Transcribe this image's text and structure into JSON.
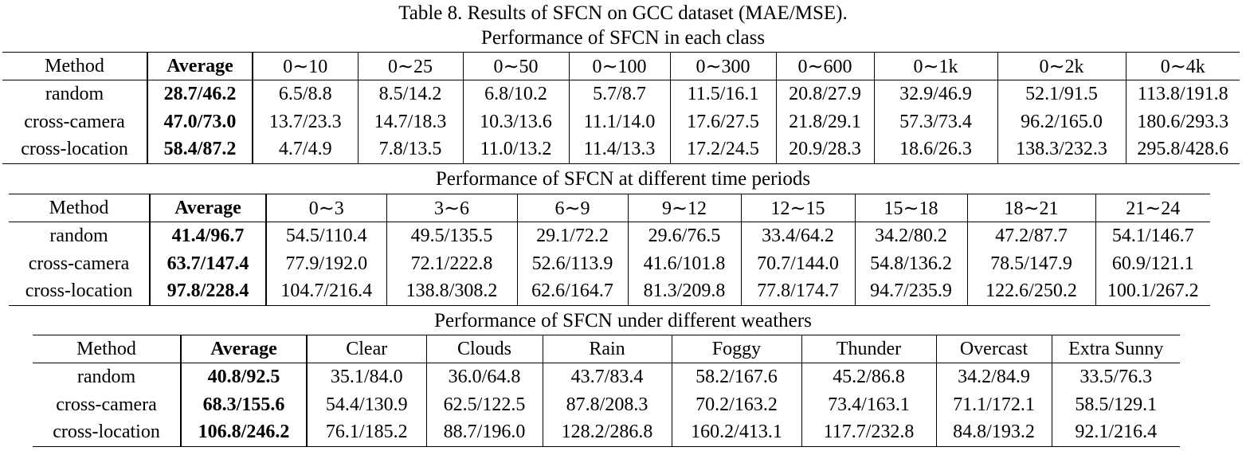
{
  "caption": "Table 8. Results of SFCN on GCC dataset (MAE/MSE).",
  "tables": [
    {
      "title": "Performance of SFCN in each class",
      "header": [
        "Method",
        "Average",
        "0∼10",
        "0∼25",
        "0∼50",
        "0∼100",
        "0∼300",
        "0∼600",
        "0∼1k",
        "0∼2k",
        "0∼4k"
      ],
      "rows": [
        [
          "random",
          "28.7/46.2",
          "6.5/8.8",
          "8.5/14.2",
          "6.8/10.2",
          "5.7/8.7",
          "11.5/16.1",
          "20.8/27.9",
          "32.9/46.9",
          "52.1/91.5",
          "113.8/191.8"
        ],
        [
          "cross-camera",
          "47.0/73.0",
          "13.7/23.3",
          "14.7/18.3",
          "10.3/13.6",
          "11.1/14.0",
          "17.6/27.5",
          "21.8/29.1",
          "57.3/73.4",
          "96.2/165.0",
          "180.6/293.3"
        ],
        [
          "cross-location",
          "58.4/87.2",
          "4.7/4.9",
          "7.8/13.5",
          "11.0/13.2",
          "11.4/13.3",
          "17.2/24.5",
          "20.9/28.3",
          "18.6/26.3",
          "138.3/232.3",
          "295.8/428.6"
        ]
      ]
    },
    {
      "title": "Performance of SFCN at different time periods",
      "header": [
        "Method",
        "Average",
        "0∼3",
        "3∼6",
        "6∼9",
        "9∼12",
        "12∼15",
        "15∼18",
        "18∼21",
        "21∼24"
      ],
      "rows": [
        [
          "random",
          "41.4/96.7",
          "54.5/110.4",
          "49.5/135.5",
          "29.1/72.2",
          "29.6/76.5",
          "33.4/64.2",
          "34.2/80.2",
          "47.2/87.7",
          "54.1/146.7"
        ],
        [
          "cross-camera",
          "63.7/147.4",
          "77.9/192.0",
          "72.1/222.8",
          "52.6/113.9",
          "41.6/101.8",
          "70.7/144.0",
          "54.8/136.2",
          "78.5/147.9",
          "60.9/121.1"
        ],
        [
          "cross-location",
          "97.8/228.4",
          "104.7/216.4",
          "138.8/308.2",
          "62.6/164.7",
          "81.3/209.8",
          "77.8/174.7",
          "94.7/235.9",
          "122.6/250.2",
          "100.1/267.2"
        ]
      ]
    },
    {
      "title": "Performance of SFCN under different weathers",
      "header": [
        "Method",
        "Average",
        "Clear",
        "Clouds",
        "Rain",
        "Foggy",
        "Thunder",
        "Overcast",
        "Extra Sunny"
      ],
      "rows": [
        [
          "random",
          "40.8/92.5",
          "35.1/84.0",
          "36.0/64.8",
          "43.7/83.4",
          "58.2/167.6",
          "45.2/86.8",
          "34.2/84.9",
          "33.5/76.3"
        ],
        [
          "cross-camera",
          "68.3/155.6",
          "54.4/130.9",
          "62.5/122.5",
          "87.8/208.3",
          "70.2/163.2",
          "73.4/163.1",
          "71.1/172.1",
          "58.5/129.1"
        ],
        [
          "cross-location",
          "106.8/246.2",
          "76.1/185.2",
          "88.7/196.0",
          "128.2/286.8",
          "160.2/413.1",
          "117.7/232.8",
          "84.8/193.2",
          "92.1/216.4"
        ]
      ]
    }
  ]
}
